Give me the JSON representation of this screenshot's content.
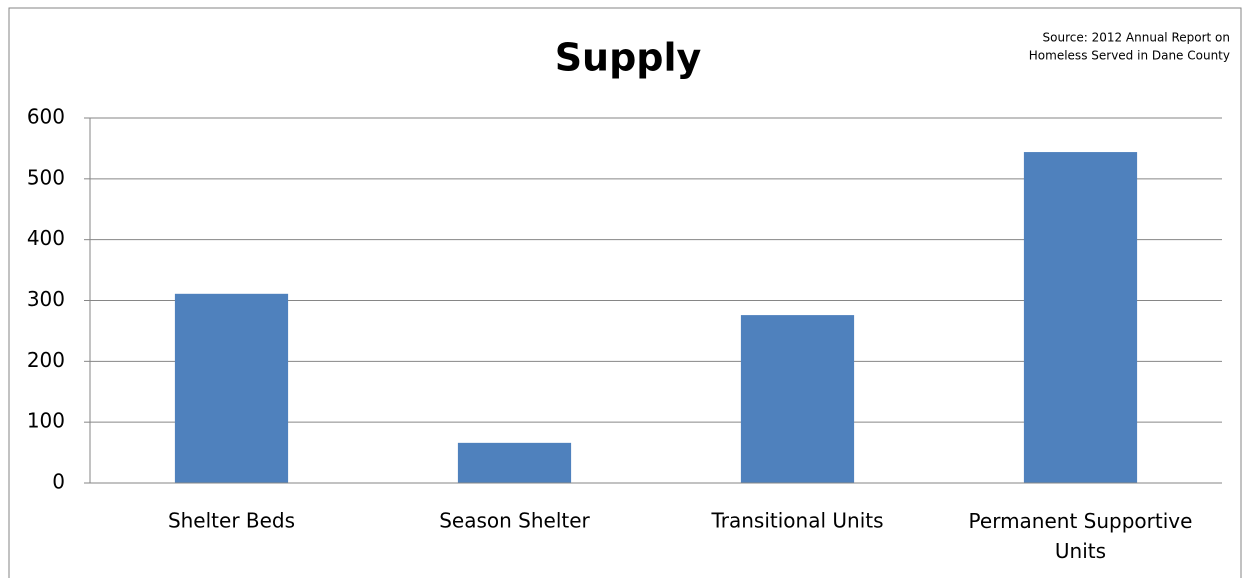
{
  "chart_data": {
    "type": "bar",
    "title": "Supply",
    "source": [
      "Source: 2012 Annual Report on",
      "Homeless Served in Dane County"
    ],
    "categories": [
      "Shelter Beds",
      "Season Shelter",
      "Transitional Units",
      "Permanent Supportive Units"
    ],
    "values": [
      311,
      66,
      276,
      544
    ],
    "color": "#4f81bd",
    "ylim": [
      0,
      600
    ],
    "yticks": [
      0,
      100,
      200,
      300,
      400,
      500,
      600
    ],
    "grid": true
  }
}
